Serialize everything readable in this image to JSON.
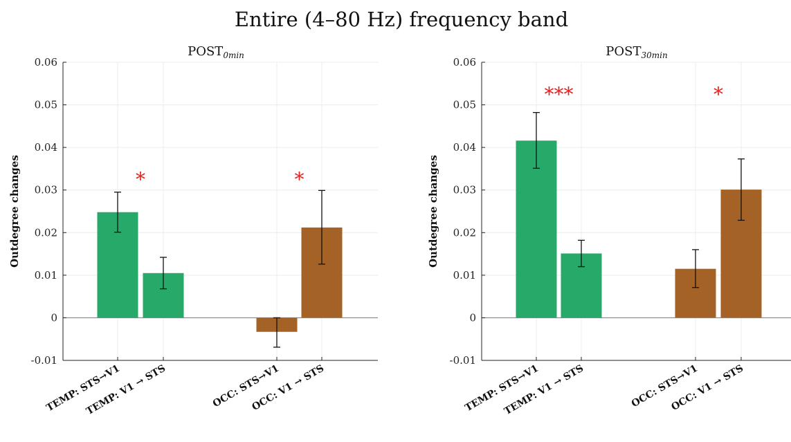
{
  "suptitle": "Entire (4–80 Hz) frequency band",
  "colors": {
    "temp": "#27a96a",
    "occ": "#a56226",
    "star": "#e8231f",
    "axis": "#222222"
  },
  "chart_data": [
    {
      "type": "bar",
      "title": "POST",
      "title_sub": "0min",
      "ylabel": "Outdegree changes",
      "ylim": [
        -0.01,
        0.06
      ],
      "yticks": [
        "-0.01",
        "0",
        "0.01",
        "0.02",
        "0.03",
        "0.04",
        "0.05",
        "0.06"
      ],
      "grid": true,
      "categories": [
        "TEMP: STS→V1",
        "TEMP: V1 → STS",
        "OCC: STS→V1",
        "OCC: V1 → STS"
      ],
      "groups": [
        "temp",
        "temp",
        "occ",
        "occ"
      ],
      "values": [
        0.0248,
        0.0105,
        -0.0033,
        0.0212
      ],
      "err_low": [
        0.0201,
        0.0068,
        -0.0069,
        0.0126
      ],
      "err_high": [
        0.0295,
        0.0142,
        0.0,
        0.0299
      ],
      "significance": [
        {
          "label": "*",
          "group": "temp",
          "y": 0.0335
        },
        {
          "label": "*",
          "group": "occ",
          "y": 0.0335
        }
      ]
    },
    {
      "type": "bar",
      "title": "POST",
      "title_sub": "30min",
      "ylabel": "Outdegree changes",
      "ylim": [
        -0.01,
        0.06
      ],
      "yticks": [
        "-0.01",
        "0",
        "0.01",
        "0.02",
        "0.03",
        "0.04",
        "0.05",
        "0.06"
      ],
      "grid": true,
      "categories": [
        "TEMP: STS→V1",
        "TEMP: V1 → STS",
        "OCC: STS→V1",
        "OCC: V1 → STS"
      ],
      "groups": [
        "temp",
        "temp",
        "occ",
        "occ"
      ],
      "values": [
        0.0416,
        0.0151,
        0.0115,
        0.0301
      ],
      "err_low": [
        0.0351,
        0.012,
        0.0071,
        0.0229
      ],
      "err_high": [
        0.0482,
        0.0182,
        0.016,
        0.0373
      ],
      "significance": [
        {
          "label": "***",
          "group": "temp",
          "y": 0.0535
        },
        {
          "label": "*",
          "group": "occ",
          "y": 0.0535
        }
      ]
    }
  ]
}
